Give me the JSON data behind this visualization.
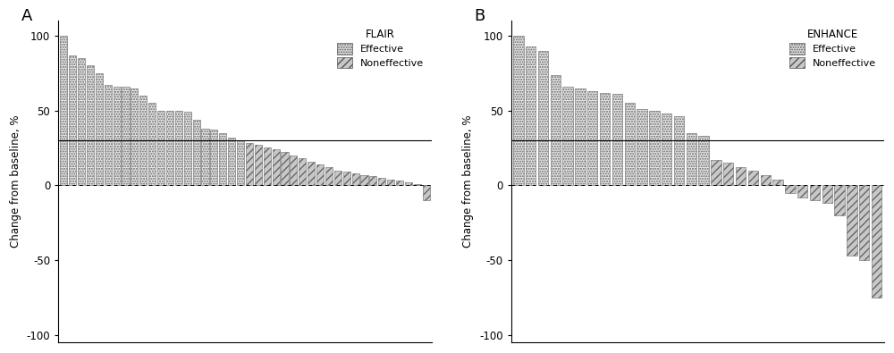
{
  "flair_effective": [
    100,
    87,
    85,
    80,
    75,
    67,
    66,
    66,
    65,
    60,
    55,
    50,
    50,
    50,
    49,
    44,
    38,
    37,
    35,
    32,
    30
  ],
  "flair_noneffective": [
    28,
    27,
    25,
    24,
    22,
    20,
    18,
    16,
    14,
    12,
    10,
    9,
    8,
    7,
    6,
    5,
    4,
    3,
    2,
    1,
    -10
  ],
  "enhance_effective": [
    100,
    93,
    90,
    74,
    66,
    65,
    63,
    62,
    61,
    55,
    51,
    50,
    48,
    46,
    35,
    33
  ],
  "enhance_noneffective": [
    17,
    15,
    12,
    10,
    7,
    4,
    -5,
    -8,
    -10,
    -12,
    -20,
    -47,
    -50,
    -75
  ],
  "threshold_line": 30,
  "ylim": [
    -105,
    110
  ],
  "yticks": [
    -100,
    -50,
    0,
    50,
    100
  ],
  "ylabel": "Change from baseline, %",
  "title_A": "FLAIR",
  "title_B": "ENHANCE",
  "legend_effective": "Effective",
  "legend_noneffective": "Noneffective",
  "label_A": "A",
  "label_B": "B",
  "background_color": "#ffffff"
}
